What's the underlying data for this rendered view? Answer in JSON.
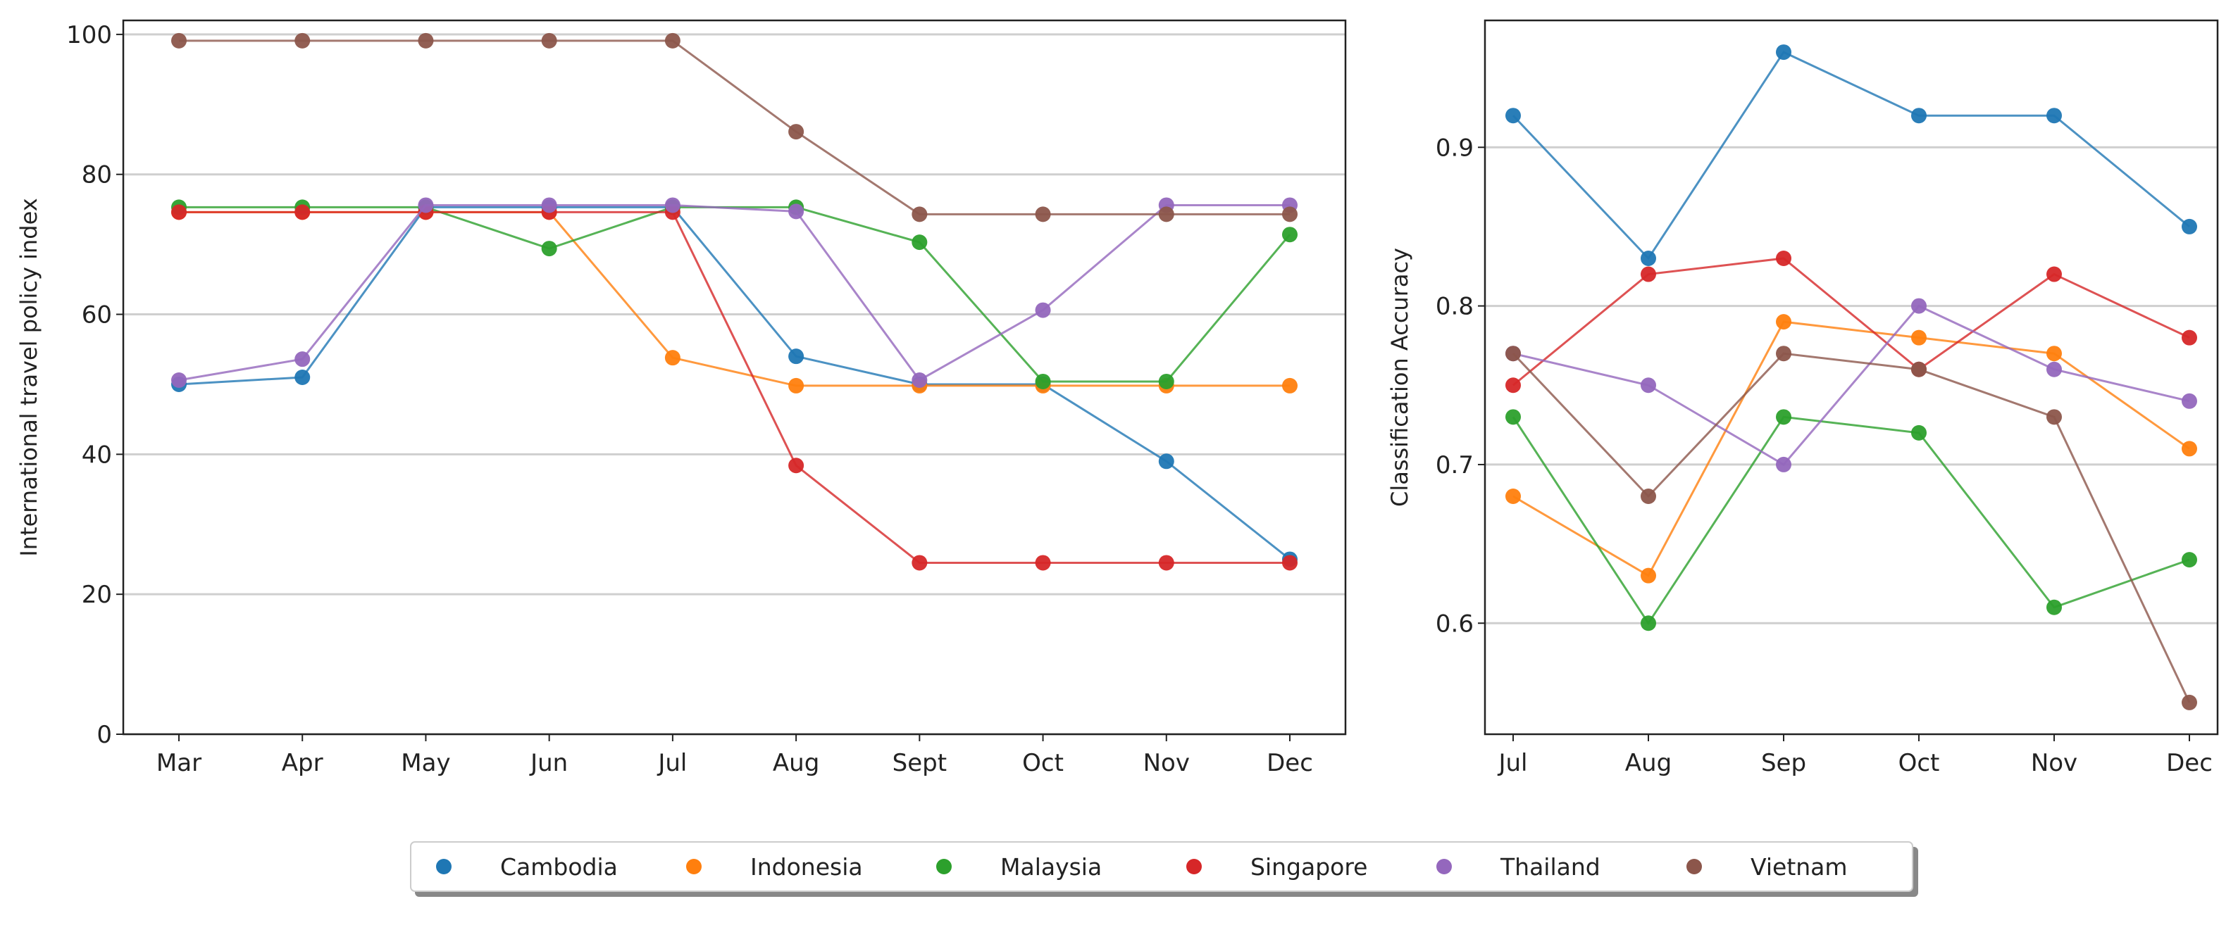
{
  "chart_data": [
    {
      "type": "line",
      "title": "",
      "xlabel": "",
      "ylabel": "International travel policy index",
      "categories": [
        "Mar",
        "Apr",
        "May",
        "Jun",
        "Jul",
        "Aug",
        "Sept",
        "Oct",
        "Nov",
        "Dec"
      ],
      "ylim": [
        0,
        102
      ],
      "yticks": [
        0,
        20,
        40,
        60,
        80,
        100
      ],
      "grid": "horizontal",
      "series": [
        {
          "name": "Cambodia",
          "color": "#1f77b4",
          "values": [
            50,
            51,
            75.3,
            75.3,
            75.3,
            54,
            50,
            50,
            39,
            25
          ]
        },
        {
          "name": "Indonesia",
          "color": "#ff7f0e",
          "values": [
            74.6,
            74.6,
            74.6,
            74.6,
            53.8,
            49.8,
            49.8,
            49.8,
            49.8,
            49.8
          ]
        },
        {
          "name": "Malaysia",
          "color": "#2ca02c",
          "values": [
            75.3,
            75.3,
            75.3,
            69.4,
            75.3,
            75.3,
            70.3,
            50.4,
            50.4,
            71.4
          ]
        },
        {
          "name": "Singapore",
          "color": "#d62728",
          "values": [
            74.6,
            74.6,
            74.6,
            74.6,
            74.6,
            38.4,
            24.5,
            24.5,
            24.5,
            24.5
          ]
        },
        {
          "name": "Thailand",
          "color": "#9467bd",
          "values": [
            50.6,
            53.6,
            75.6,
            75.6,
            75.6,
            74.7,
            50.6,
            60.6,
            75.6,
            75.6
          ]
        },
        {
          "name": "Vietnam",
          "color": "#8c564b",
          "values": [
            99.1,
            99.1,
            99.1,
            99.1,
            99.1,
            86.1,
            74.3,
            74.3,
            74.3,
            74.3
          ]
        }
      ]
    },
    {
      "type": "line",
      "title": "",
      "xlabel": "",
      "ylabel": "Classification Accuracy",
      "categories": [
        "Jul",
        "Aug",
        "Sep",
        "Oct",
        "Nov",
        "Dec"
      ],
      "ylim": [
        0.53,
        0.98
      ],
      "yticks": [
        "0.6",
        "0.7",
        "0.8",
        "0.9"
      ],
      "grid": "horizontal",
      "series": [
        {
          "name": "Cambodia",
          "color": "#1f77b4",
          "values": [
            0.92,
            0.83,
            0.96,
            0.92,
            0.92,
            0.85
          ]
        },
        {
          "name": "Indonesia",
          "color": "#ff7f0e",
          "values": [
            0.68,
            0.63,
            0.79,
            0.78,
            0.77,
            0.71
          ]
        },
        {
          "name": "Malaysia",
          "color": "#2ca02c",
          "values": [
            0.73,
            0.6,
            0.73,
            0.72,
            0.61,
            0.64
          ]
        },
        {
          "name": "Singapore",
          "color": "#d62728",
          "values": [
            0.75,
            0.82,
            0.83,
            0.76,
            0.82,
            0.78
          ]
        },
        {
          "name": "Thailand",
          "color": "#9467bd",
          "values": [
            0.77,
            0.75,
            0.7,
            0.8,
            0.76,
            0.74
          ]
        },
        {
          "name": "Vietnam",
          "color": "#8c564b",
          "values": [
            0.77,
            0.68,
            0.77,
            0.76,
            0.73,
            0.55
          ]
        }
      ]
    }
  ],
  "legend": {
    "placement": "bottom-center",
    "entries": [
      {
        "label": "Cambodia",
        "color": "#1f77b4"
      },
      {
        "label": "Indonesia",
        "color": "#ff7f0e"
      },
      {
        "label": "Malaysia",
        "color": "#2ca02c"
      },
      {
        "label": "Singapore",
        "color": "#d62728"
      },
      {
        "label": "Thailand",
        "color": "#9467bd"
      },
      {
        "label": "Vietnam",
        "color": "#8c564b"
      }
    ]
  }
}
